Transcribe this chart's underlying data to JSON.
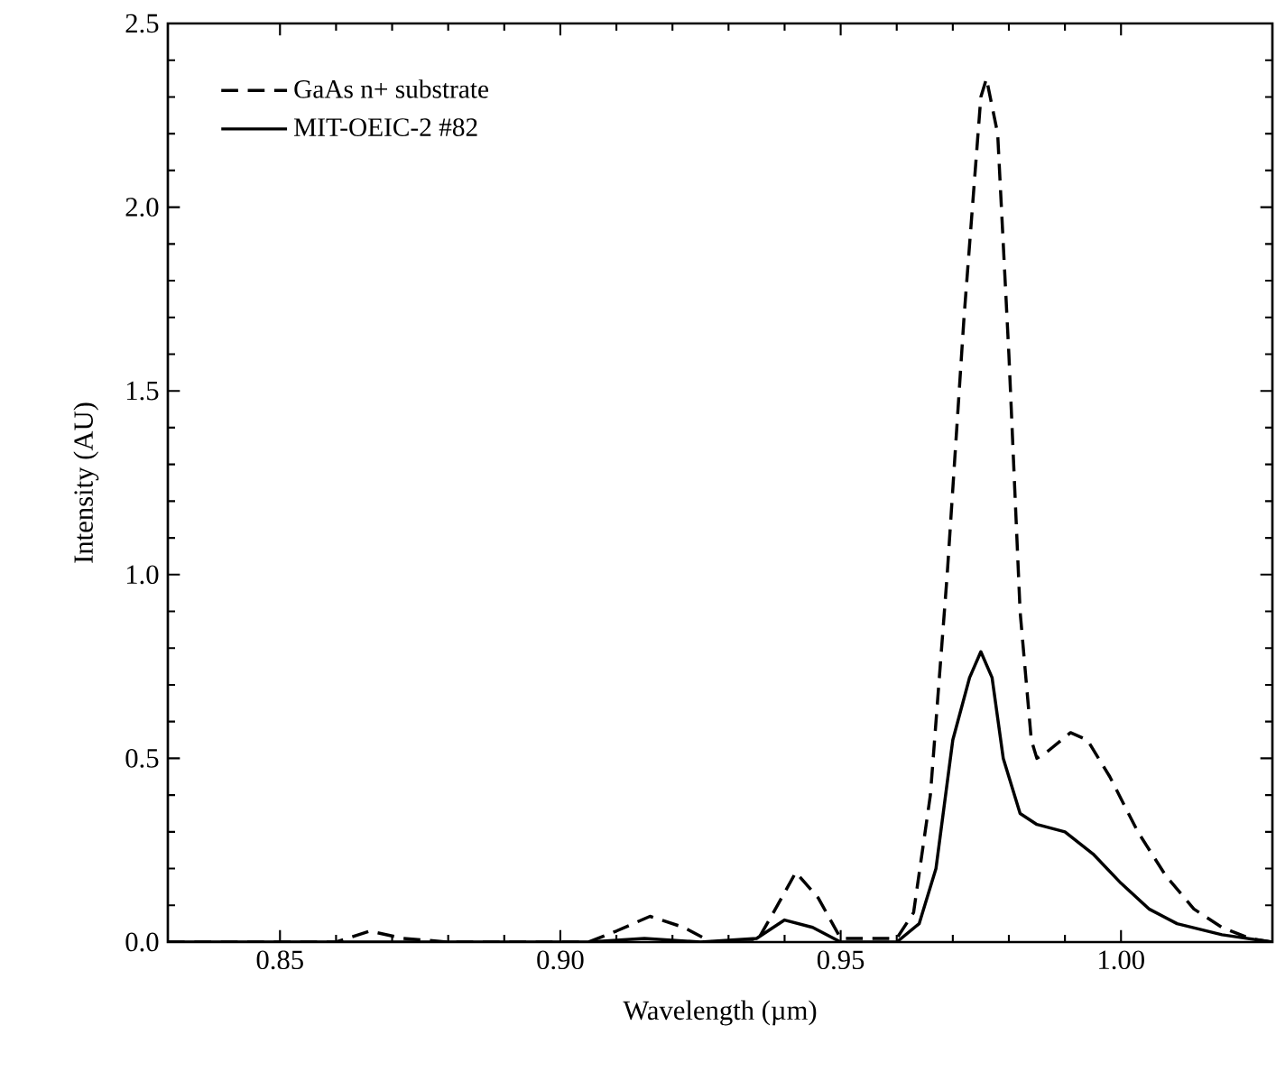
{
  "chart_data": {
    "type": "line",
    "xlabel": "Wavelength (µm)",
    "ylabel": "Intensity (AU)",
    "xlim": [
      0.83,
      1.027
    ],
    "ylim": [
      0,
      2.5
    ],
    "xticks": [
      {
        "value": 0.85,
        "label": "0.85"
      },
      {
        "value": 0.9,
        "label": "0.90"
      },
      {
        "value": 0.95,
        "label": "0.95"
      },
      {
        "value": 1.0,
        "label": "1.00"
      }
    ],
    "yticks": [
      {
        "value": 0,
        "label": "0.0"
      },
      {
        "value": 0.5,
        "label": "0.5"
      },
      {
        "value": 1.0,
        "label": "1.0"
      },
      {
        "value": 1.5,
        "label": "1.5"
      },
      {
        "value": 2.0,
        "label": "2.0"
      },
      {
        "value": 2.5,
        "label": "2.5"
      }
    ],
    "legend": "top left",
    "grid": false,
    "marker": "none",
    "series": [
      {
        "name": "GaAs n+ substrate",
        "color": "#000000",
        "line_style": "dashed",
        "x": [
          0.83,
          0.86,
          0.866,
          0.872,
          0.88,
          0.905,
          0.91,
          0.916,
          0.922,
          0.927,
          0.935,
          0.938,
          0.942,
          0.946,
          0.95,
          0.96,
          0.963,
          0.966,
          0.969,
          0.972,
          0.975,
          0.976,
          0.978,
          0.98,
          0.982,
          0.984,
          0.985,
          0.987,
          0.991,
          0.994,
          0.998,
          1.003,
          1.008,
          1.013,
          1.018,
          1.023,
          1.027
        ],
        "values": [
          0,
          0,
          0.03,
          0.01,
          0,
          0,
          0.03,
          0.07,
          0.04,
          0,
          0,
          0.08,
          0.19,
          0.12,
          0.01,
          0.01,
          0.08,
          0.4,
          1.0,
          1.7,
          2.3,
          2.35,
          2.2,
          1.6,
          0.9,
          0.55,
          0.5,
          0.52,
          0.57,
          0.55,
          0.45,
          0.3,
          0.18,
          0.09,
          0.04,
          0.01,
          0
        ]
      },
      {
        "name": "MIT-OEIC-2 #82",
        "color": "#000000",
        "line_style": "solid",
        "x": [
          0.83,
          0.905,
          0.915,
          0.925,
          0.935,
          0.94,
          0.945,
          0.95,
          0.96,
          0.964,
          0.967,
          0.97,
          0.973,
          0.975,
          0.977,
          0.979,
          0.982,
          0.985,
          0.99,
          0.995,
          1.0,
          1.005,
          1.01,
          1.018,
          1.027
        ],
        "values": [
          0,
          0,
          0.01,
          0,
          0.01,
          0.06,
          0.04,
          0,
          0,
          0.05,
          0.2,
          0.55,
          0.72,
          0.79,
          0.72,
          0.5,
          0.35,
          0.32,
          0.3,
          0.24,
          0.16,
          0.09,
          0.05,
          0.02,
          0
        ]
      }
    ]
  }
}
